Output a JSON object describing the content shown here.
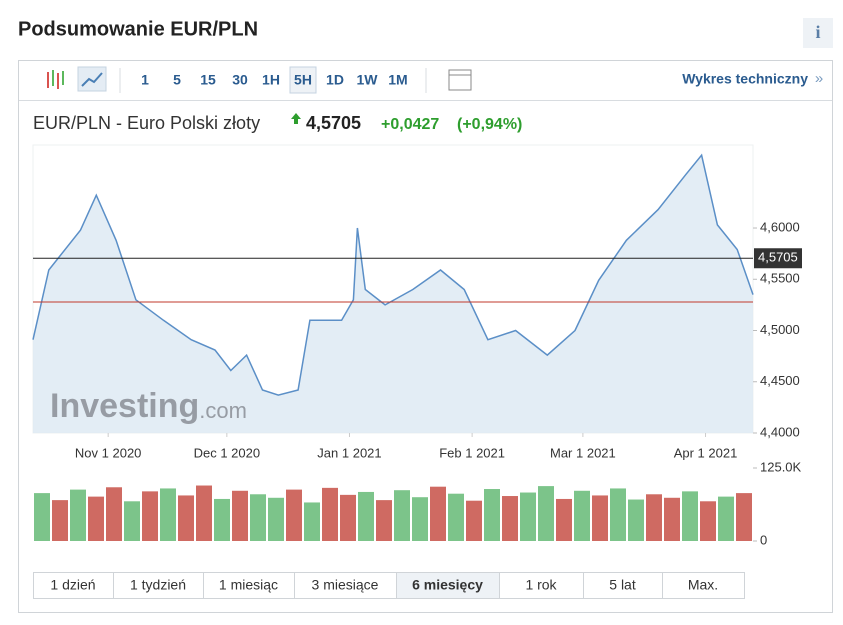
{
  "header": {
    "title": "Podsumowanie EUR/PLN",
    "info": "i"
  },
  "toolbar": {
    "intervals": [
      "1",
      "5",
      "15",
      "30",
      "1H",
      "5H",
      "1D",
      "1W",
      "1M"
    ],
    "technical_link": "Wykres techniczny",
    "technical_link_arrow": "»"
  },
  "quote": {
    "name": "EUR/PLN - Euro Polski złoty",
    "price": "4,5705",
    "change": "+0,0427",
    "change_pct": "(+0,94%)"
  },
  "chart_data": {
    "type": "area",
    "watermark": [
      "Investing",
      ".com"
    ],
    "x": [
      "2020-10-13",
      "2020-10-17",
      "2020-10-25",
      "2020-10-29",
      "2020-11-03",
      "2020-11-08",
      "2020-11-15",
      "2020-11-22",
      "2020-11-28",
      "2020-12-02",
      "2020-12-06",
      "2020-12-10",
      "2020-12-14",
      "2020-12-19",
      "2020-12-22",
      "2020-12-26",
      "2020-12-30",
      "2021-01-02",
      "2021-01-03",
      "2021-01-05",
      "2021-01-10",
      "2021-01-17",
      "2021-01-24",
      "2021-01-30",
      "2021-02-05",
      "2021-02-12",
      "2021-02-20",
      "2021-02-27",
      "2021-03-05",
      "2021-03-12",
      "2021-03-20",
      "2021-03-27",
      "2021-03-31",
      "2021-04-04",
      "2021-04-09",
      "2021-04-13"
    ],
    "values": [
      4.491,
      4.559,
      4.598,
      4.632,
      4.588,
      4.53,
      4.51,
      4.491,
      4.481,
      4.461,
      4.476,
      4.442,
      4.437,
      4.442,
      4.51,
      4.51,
      4.51,
      4.53,
      4.6,
      4.54,
      4.525,
      4.54,
      4.559,
      4.54,
      4.491,
      4.5,
      4.476,
      4.5,
      4.549,
      4.588,
      4.618,
      4.652,
      4.671,
      4.603,
      4.579,
      4.535
    ],
    "color": "#5b8fc7",
    "fill": "#dce8f3",
    "current": {
      "value": 4.5705,
      "label": "4,5705"
    },
    "prev_close": 4.5278,
    "xlim": [
      "2020-10-13",
      "2021-04-13"
    ],
    "xticks": [
      {
        "value": "2020-11-01",
        "label": "Nov 1 2020"
      },
      {
        "value": "2020-12-01",
        "label": "Dec 1 2020"
      },
      {
        "value": "2021-01-01",
        "label": "Jan 1 2021"
      },
      {
        "value": "2021-02-01",
        "label": "Feb 1 2021"
      },
      {
        "value": "2021-03-01",
        "label": "Mar 1 2021"
      },
      {
        "value": "2021-04-01",
        "label": "Apr 1 2021"
      }
    ],
    "ylim": [
      4.4,
      4.681
    ],
    "yticks": [
      {
        "value": 4.4,
        "label": "4,4000"
      },
      {
        "value": 4.45,
        "label": "4,4500"
      },
      {
        "value": 4.5,
        "label": "4,5000"
      },
      {
        "value": 4.55,
        "label": "4,5500"
      },
      {
        "value": 4.6,
        "label": "4,6000"
      }
    ],
    "volume": {
      "values": [
        82000,
        70000,
        88000,
        76000,
        92000,
        68000,
        85000,
        90000,
        78000,
        95000,
        72000,
        86000,
        80000,
        74000,
        88000,
        66000,
        91000,
        79000,
        84000,
        70000,
        87000,
        75000,
        93000,
        81000,
        69000,
        89000,
        77000,
        83000,
        94000,
        72000,
        86000,
        78000,
        90000,
        71000,
        80000,
        74000,
        85000,
        68000,
        76000,
        82000
      ],
      "colors": [
        "#7cc48a",
        "#cf6a62",
        "#7cc48a",
        "#cf6a62",
        "#cf6a62",
        "#7cc48a",
        "#cf6a62",
        "#7cc48a",
        "#cf6a62",
        "#cf6a62",
        "#7cc48a",
        "#cf6a62",
        "#7cc48a",
        "#7cc48a",
        "#cf6a62",
        "#7cc48a",
        "#cf6a62",
        "#cf6a62",
        "#7cc48a",
        "#cf6a62",
        "#7cc48a",
        "#7cc48a",
        "#cf6a62",
        "#7cc48a",
        "#cf6a62",
        "#7cc48a",
        "#cf6a62",
        "#7cc48a",
        "#7cc48a",
        "#cf6a62",
        "#7cc48a",
        "#cf6a62",
        "#7cc48a",
        "#7cc48a",
        "#cf6a62",
        "#cf6a62",
        "#7cc48a",
        "#cf6a62",
        "#7cc48a",
        "#cf6a62"
      ],
      "ylim": [
        0,
        125000
      ],
      "yticks": [
        0,
        {
          "value": 125000,
          "label": "125.0K"
        }
      ]
    }
  },
  "periods": [
    "1 dzień",
    "1 tydzień",
    "1 miesiąc",
    "3 miesiące",
    "6 miesięcy",
    "1 rok",
    "5 lat",
    "Max."
  ]
}
